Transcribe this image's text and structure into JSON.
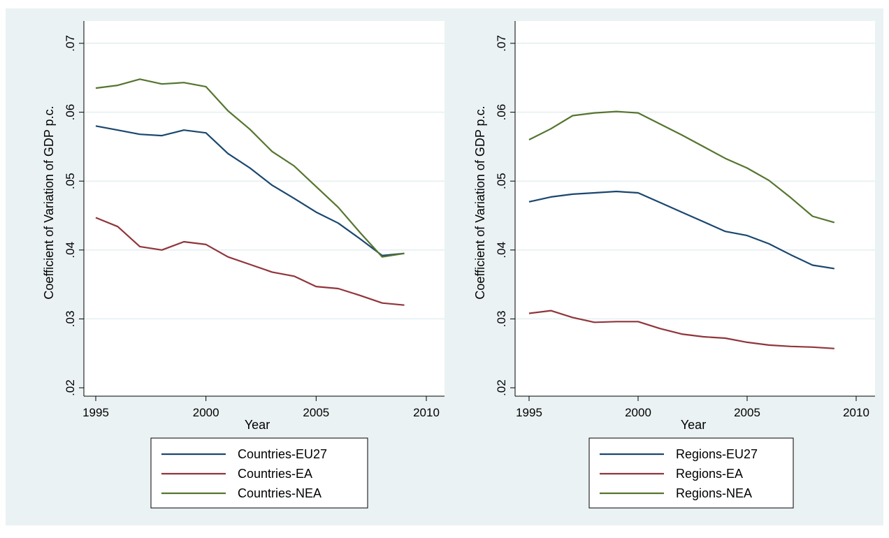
{
  "colors": {
    "outer_background": "#eaf2f3",
    "plot_background": "#ffffff",
    "gridline": "#eaf2f3",
    "eu27": "#1a476f",
    "ea": "#90353b",
    "nea": "#55752f"
  },
  "chart_data": [
    {
      "type": "line",
      "x": [
        1995,
        1996,
        1997,
        1998,
        1999,
        2000,
        2001,
        2002,
        2003,
        2004,
        2005,
        2006,
        2007,
        2008,
        2009
      ],
      "xlabel": "Year",
      "ylabel": "Coefficient of Variation of GDP p.c.",
      "xlim": [
        1995,
        2010
      ],
      "ylim": [
        0.02,
        0.07
      ],
      "xticks": [
        1995,
        2000,
        2005,
        2010
      ],
      "xtick_labels": [
        "1995",
        "2000",
        "2005",
        "2010"
      ],
      "yticks": [
        0.02,
        0.03,
        0.04,
        0.05,
        0.06,
        0.07
      ],
      "ytick_labels": [
        ".02",
        ".03",
        ".04",
        ".05",
        ".06",
        ".07"
      ],
      "grid": true,
      "legend_position": "bottom",
      "series": [
        {
          "name": "Countries-EU27",
          "color_key": "eu27",
          "values": [
            0.058,
            0.0574,
            0.0568,
            0.0566,
            0.0574,
            0.057,
            0.054,
            0.0519,
            0.0494,
            0.0475,
            0.0455,
            0.0439,
            0.0416,
            0.0392,
            0.0395
          ]
        },
        {
          "name": "Countries-EA",
          "color_key": "ea",
          "values": [
            0.0447,
            0.0434,
            0.0405,
            0.04,
            0.0412,
            0.0408,
            0.039,
            0.0379,
            0.0368,
            0.0362,
            0.0347,
            0.0344,
            0.0334,
            0.0323,
            0.032
          ]
        },
        {
          "name": "Countries-NEA",
          "color_key": "nea",
          "values": [
            0.0635,
            0.0639,
            0.0648,
            0.0641,
            0.0643,
            0.0637,
            0.0602,
            0.0575,
            0.0543,
            0.0522,
            0.0492,
            0.0462,
            0.0425,
            0.039,
            0.0395
          ]
        }
      ]
    },
    {
      "type": "line",
      "x": [
        1995,
        1996,
        1997,
        1998,
        1999,
        2000,
        2001,
        2002,
        2003,
        2004,
        2005,
        2006,
        2007,
        2008,
        2009
      ],
      "xlabel": "Year",
      "ylabel": "Coefficient of Variation of GDP p.c.",
      "xlim": [
        1995,
        2010
      ],
      "ylim": [
        0.02,
        0.07
      ],
      "xticks": [
        1995,
        2000,
        2005,
        2010
      ],
      "xtick_labels": [
        "1995",
        "2000",
        "2005",
        "2010"
      ],
      "yticks": [
        0.02,
        0.03,
        0.04,
        0.05,
        0.06,
        0.07
      ],
      "ytick_labels": [
        ".02",
        ".03",
        ".04",
        ".05",
        ".06",
        ".07"
      ],
      "grid": true,
      "legend_position": "bottom",
      "series": [
        {
          "name": "Regions-EU27",
          "color_key": "eu27",
          "values": [
            0.047,
            0.0477,
            0.0481,
            0.0483,
            0.0485,
            0.0483,
            0.0469,
            0.0455,
            0.0441,
            0.0427,
            0.0421,
            0.0409,
            0.0393,
            0.0378,
            0.0373
          ]
        },
        {
          "name": "Regions-EA",
          "color_key": "ea",
          "values": [
            0.0308,
            0.0312,
            0.0302,
            0.0295,
            0.0296,
            0.0296,
            0.0286,
            0.0278,
            0.0274,
            0.0272,
            0.0266,
            0.0262,
            0.026,
            0.0259,
            0.0257
          ]
        },
        {
          "name": "Regions-NEA",
          "color_key": "nea",
          "values": [
            0.056,
            0.0576,
            0.0595,
            0.0599,
            0.0601,
            0.0599,
            0.0583,
            0.0567,
            0.055,
            0.0533,
            0.0519,
            0.0501,
            0.0476,
            0.0449,
            0.044
          ]
        }
      ]
    }
  ]
}
